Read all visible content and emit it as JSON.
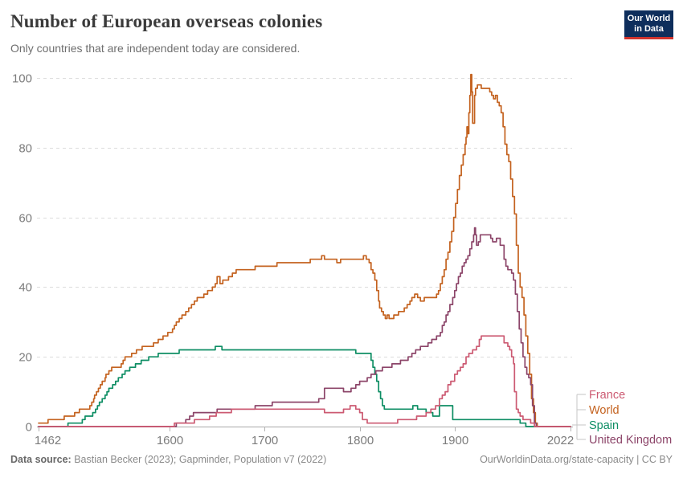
{
  "header": {
    "title": "Number of European overseas colonies",
    "subtitle": "Only countries that are independent today are considered.",
    "logo_line1": "Our World",
    "logo_line2": "in Data"
  },
  "footer": {
    "source_label": "Data source:",
    "source_text": " Bastian Becker (2023); Gapminder, Population v7 (2022)",
    "right_text": "OurWorldinData.org/state-capacity | CC BY"
  },
  "colors": {
    "france": "#CC5A72",
    "world": "#C4621F",
    "spain": "#0E8E64",
    "united_kingdom": "#8C4569",
    "grid": "#dcdcdc",
    "axis_line": "#a8a8a8",
    "tick": "#b3b3b3",
    "axis_text": "#7c7c7c",
    "legend_connector": "#c6c6c6"
  },
  "chart_data": {
    "type": "line",
    "step": true,
    "title": "Number of European overseas colonies",
    "xlabel": "",
    "ylabel": "",
    "x_axis": {
      "range": [
        1462,
        2022
      ],
      "ticks": [
        1462,
        1600,
        1700,
        1800,
        1900,
        2022
      ]
    },
    "y_axis": {
      "range": [
        0,
        100
      ],
      "ticks": [
        0,
        20,
        40,
        60,
        80,
        100
      ],
      "gridlines": true
    },
    "legend_position": "right",
    "series": [
      {
        "name": "France",
        "color": "#CC5A72",
        "points": [
          [
            1462,
            0
          ],
          [
            1605,
            1
          ],
          [
            1626,
            2
          ],
          [
            1642,
            3
          ],
          [
            1649,
            4
          ],
          [
            1665,
            5
          ],
          [
            1763,
            4
          ],
          [
            1783,
            5
          ],
          [
            1790,
            6
          ],
          [
            1796,
            5
          ],
          [
            1800,
            4
          ],
          [
            1803,
            2
          ],
          [
            1808,
            1
          ],
          [
            1840,
            2
          ],
          [
            1860,
            3
          ],
          [
            1870,
            4
          ],
          [
            1875,
            5
          ],
          [
            1880,
            6
          ],
          [
            1884,
            8
          ],
          [
            1887,
            9
          ],
          [
            1890,
            10
          ],
          [
            1893,
            12
          ],
          [
            1896,
            13
          ],
          [
            1900,
            15
          ],
          [
            1903,
            16
          ],
          [
            1906,
            17
          ],
          [
            1909,
            18
          ],
          [
            1912,
            20
          ],
          [
            1915,
            21
          ],
          [
            1919,
            22
          ],
          [
            1923,
            23
          ],
          [
            1926,
            25
          ],
          [
            1928,
            26
          ],
          [
            1952,
            24
          ],
          [
            1956,
            23
          ],
          [
            1958,
            22
          ],
          [
            1960,
            20
          ],
          [
            1962,
            18
          ],
          [
            1963,
            10
          ],
          [
            1965,
            5
          ],
          [
            1967,
            4
          ],
          [
            1969,
            3
          ],
          [
            1972,
            2
          ],
          [
            1980,
            1
          ],
          [
            1984,
            0
          ],
          [
            2022,
            0
          ]
        ]
      },
      {
        "name": "World",
        "color": "#C4621F",
        "points": [
          [
            1462,
            1
          ],
          [
            1472,
            2
          ],
          [
            1489,
            3
          ],
          [
            1500,
            4
          ],
          [
            1505,
            5
          ],
          [
            1516,
            6
          ],
          [
            1518,
            7
          ],
          [
            1520,
            8
          ],
          [
            1521,
            9
          ],
          [
            1523,
            10
          ],
          [
            1525,
            11
          ],
          [
            1527,
            12
          ],
          [
            1529,
            13
          ],
          [
            1532,
            14
          ],
          [
            1533,
            15
          ],
          [
            1536,
            16
          ],
          [
            1539,
            17
          ],
          [
            1549,
            18
          ],
          [
            1551,
            19
          ],
          [
            1553,
            20
          ],
          [
            1560,
            21
          ],
          [
            1565,
            22
          ],
          [
            1571,
            23
          ],
          [
            1583,
            24
          ],
          [
            1588,
            25
          ],
          [
            1593,
            26
          ],
          [
            1598,
            27
          ],
          [
            1603,
            28
          ],
          [
            1605,
            29
          ],
          [
            1607,
            30
          ],
          [
            1610,
            31
          ],
          [
            1613,
            32
          ],
          [
            1617,
            33
          ],
          [
            1620,
            34
          ],
          [
            1623,
            35
          ],
          [
            1626,
            36
          ],
          [
            1629,
            37
          ],
          [
            1636,
            38
          ],
          [
            1640,
            39
          ],
          [
            1645,
            40
          ],
          [
            1648,
            41
          ],
          [
            1650,
            43
          ],
          [
            1653,
            41
          ],
          [
            1656,
            42
          ],
          [
            1662,
            43
          ],
          [
            1666,
            44
          ],
          [
            1670,
            45
          ],
          [
            1690,
            46
          ],
          [
            1713,
            47
          ],
          [
            1748,
            48
          ],
          [
            1760,
            49
          ],
          [
            1763,
            48
          ],
          [
            1776,
            47
          ],
          [
            1780,
            48
          ],
          [
            1804,
            49
          ],
          [
            1807,
            48
          ],
          [
            1810,
            47
          ],
          [
            1812,
            45
          ],
          [
            1814,
            44
          ],
          [
            1816,
            42
          ],
          [
            1818,
            39
          ],
          [
            1820,
            36
          ],
          [
            1821,
            34
          ],
          [
            1823,
            33
          ],
          [
            1825,
            32
          ],
          [
            1827,
            31
          ],
          [
            1829,
            32
          ],
          [
            1831,
            31
          ],
          [
            1836,
            32
          ],
          [
            1841,
            33
          ],
          [
            1847,
            34
          ],
          [
            1850,
            35
          ],
          [
            1853,
            36
          ],
          [
            1855,
            37
          ],
          [
            1858,
            38
          ],
          [
            1861,
            37
          ],
          [
            1864,
            36
          ],
          [
            1868,
            37
          ],
          [
            1881,
            38
          ],
          [
            1883,
            39
          ],
          [
            1885,
            41
          ],
          [
            1887,
            43
          ],
          [
            1889,
            45
          ],
          [
            1891,
            48
          ],
          [
            1893,
            50
          ],
          [
            1895,
            53
          ],
          [
            1897,
            56
          ],
          [
            1899,
            60
          ],
          [
            1901,
            64
          ],
          [
            1903,
            68
          ],
          [
            1905,
            72
          ],
          [
            1907,
            75
          ],
          [
            1909,
            78
          ],
          [
            1911,
            81
          ],
          [
            1912,
            83
          ],
          [
            1913,
            86
          ],
          [
            1914,
            84
          ],
          [
            1915,
            90
          ],
          [
            1916,
            95
          ],
          [
            1917,
            101
          ],
          [
            1918,
            96
          ],
          [
            1919,
            87
          ],
          [
            1921,
            95
          ],
          [
            1922,
            97
          ],
          [
            1924,
            98
          ],
          [
            1928,
            97
          ],
          [
            1937,
            96
          ],
          [
            1939,
            95
          ],
          [
            1941,
            94
          ],
          [
            1943,
            95
          ],
          [
            1945,
            93
          ],
          [
            1947,
            92
          ],
          [
            1949,
            90
          ],
          [
            1951,
            86
          ],
          [
            1953,
            81
          ],
          [
            1955,
            78
          ],
          [
            1957,
            76
          ],
          [
            1959,
            71
          ],
          [
            1961,
            66
          ],
          [
            1963,
            61
          ],
          [
            1965,
            52
          ],
          [
            1967,
            44
          ],
          [
            1969,
            40
          ],
          [
            1971,
            37
          ],
          [
            1973,
            32
          ],
          [
            1975,
            26
          ],
          [
            1977,
            21
          ],
          [
            1979,
            15
          ],
          [
            1981,
            8
          ],
          [
            1983,
            4
          ],
          [
            1985,
            1
          ],
          [
            1987,
            0
          ],
          [
            2022,
            0
          ]
        ]
      },
      {
        "name": "Spain",
        "color": "#0E8E64",
        "points": [
          [
            1462,
            0
          ],
          [
            1493,
            1
          ],
          [
            1508,
            2
          ],
          [
            1511,
            3
          ],
          [
            1519,
            4
          ],
          [
            1522,
            5
          ],
          [
            1524,
            6
          ],
          [
            1526,
            7
          ],
          [
            1529,
            8
          ],
          [
            1532,
            9
          ],
          [
            1534,
            10
          ],
          [
            1536,
            11
          ],
          [
            1540,
            12
          ],
          [
            1543,
            13
          ],
          [
            1546,
            14
          ],
          [
            1550,
            15
          ],
          [
            1553,
            16
          ],
          [
            1558,
            17
          ],
          [
            1564,
            18
          ],
          [
            1570,
            19
          ],
          [
            1578,
            20
          ],
          [
            1588,
            21
          ],
          [
            1610,
            22
          ],
          [
            1648,
            23
          ],
          [
            1655,
            22
          ],
          [
            1796,
            21
          ],
          [
            1812,
            19
          ],
          [
            1814,
            17
          ],
          [
            1816,
            15
          ],
          [
            1818,
            13
          ],
          [
            1820,
            10
          ],
          [
            1822,
            8
          ],
          [
            1824,
            6
          ],
          [
            1826,
            5
          ],
          [
            1856,
            6
          ],
          [
            1861,
            5
          ],
          [
            1870,
            4
          ],
          [
            1877,
            3
          ],
          [
            1884,
            6
          ],
          [
            1898,
            2
          ],
          [
            1967,
            2
          ],
          [
            1969,
            1
          ],
          [
            1975,
            0
          ],
          [
            2022,
            0
          ]
        ]
      },
      {
        "name": "United Kingdom",
        "color": "#8C4569",
        "points": [
          [
            1462,
            0
          ],
          [
            1607,
            1
          ],
          [
            1617,
            2
          ],
          [
            1621,
            3
          ],
          [
            1625,
            4
          ],
          [
            1650,
            5
          ],
          [
            1690,
            6
          ],
          [
            1708,
            7
          ],
          [
            1757,
            8
          ],
          [
            1763,
            11
          ],
          [
            1783,
            10
          ],
          [
            1791,
            11
          ],
          [
            1796,
            12
          ],
          [
            1800,
            13
          ],
          [
            1808,
            14
          ],
          [
            1812,
            15
          ],
          [
            1817,
            16
          ],
          [
            1824,
            17
          ],
          [
            1834,
            18
          ],
          [
            1843,
            19
          ],
          [
            1851,
            20
          ],
          [
            1855,
            21
          ],
          [
            1859,
            22
          ],
          [
            1864,
            23
          ],
          [
            1872,
            24
          ],
          [
            1876,
            25
          ],
          [
            1881,
            26
          ],
          [
            1885,
            27
          ],
          [
            1887,
            29
          ],
          [
            1889,
            30
          ],
          [
            1891,
            32
          ],
          [
            1893,
            33
          ],
          [
            1895,
            35
          ],
          [
            1898,
            37
          ],
          [
            1900,
            39
          ],
          [
            1902,
            41
          ],
          [
            1904,
            43
          ],
          [
            1906,
            44
          ],
          [
            1908,
            46
          ],
          [
            1910,
            47
          ],
          [
            1912,
            48
          ],
          [
            1914,
            49
          ],
          [
            1916,
            51
          ],
          [
            1918,
            53
          ],
          [
            1920,
            55
          ],
          [
            1921,
            57
          ],
          [
            1922,
            55
          ],
          [
            1923,
            52
          ],
          [
            1925,
            53
          ],
          [
            1927,
            55
          ],
          [
            1936,
            55
          ],
          [
            1938,
            54
          ],
          [
            1940,
            53
          ],
          [
            1944,
            54
          ],
          [
            1948,
            52
          ],
          [
            1952,
            48
          ],
          [
            1954,
            46
          ],
          [
            1956,
            45
          ],
          [
            1960,
            44
          ],
          [
            1962,
            42
          ],
          [
            1964,
            38
          ],
          [
            1966,
            33
          ],
          [
            1968,
            28
          ],
          [
            1970,
            24
          ],
          [
            1972,
            20
          ],
          [
            1974,
            17
          ],
          [
            1976,
            15
          ],
          [
            1978,
            14
          ],
          [
            1980,
            12
          ],
          [
            1982,
            6
          ],
          [
            1984,
            1
          ],
          [
            1986,
            0
          ],
          [
            2022,
            0
          ]
        ]
      }
    ]
  }
}
